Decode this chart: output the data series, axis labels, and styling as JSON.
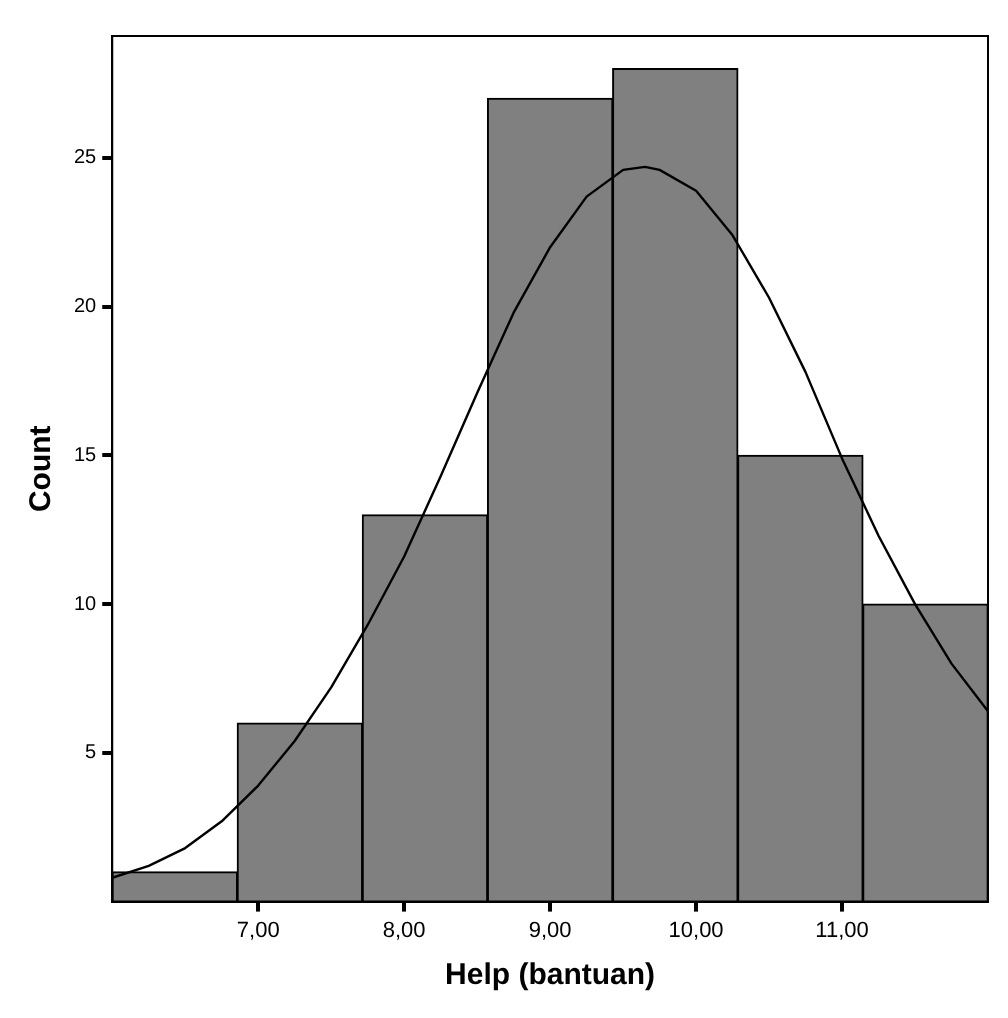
{
  "chart_data": {
    "type": "histogram",
    "xlabel": "Help (bantuan)",
    "ylabel": "Count",
    "bins": [
      6,
      6.857,
      7.714,
      8.571,
      9.429,
      10.286,
      11.143,
      12
    ],
    "values": [
      1,
      6,
      13,
      27,
      28,
      15,
      10
    ],
    "color": "#808080",
    "series": [
      {
        "type": "line",
        "color": "#000000",
        "x": [
          6,
          6.25,
          6.5,
          6.75,
          7,
          7.25,
          7.5,
          7.75,
          8,
          8.25,
          8.5,
          8.75,
          9,
          9.25,
          9.5,
          9.65,
          9.75,
          10,
          10.25,
          10.5,
          10.75,
          11,
          11.25,
          11.5,
          11.75,
          12
        ],
        "values": [
          0.8,
          1.2,
          1.8,
          2.7,
          3.9,
          5.4,
          7.2,
          9.3,
          11.6,
          14.3,
          17.1,
          19.8,
          22.0,
          23.7,
          24.6,
          24.7,
          24.6,
          23.9,
          22.4,
          20.3,
          17.8,
          14.9,
          12.3,
          10.0,
          8.0,
          6.4
        ]
      }
    ],
    "xlim": [
      6,
      12
    ],
    "ylim": [
      0,
      29.1
    ],
    "xticks": [
      {
        "value": 7,
        "label": "7,00"
      },
      {
        "value": 8,
        "label": "8,00"
      },
      {
        "value": 9,
        "label": "9,00"
      },
      {
        "value": 10,
        "label": "10,00"
      },
      {
        "value": 11,
        "label": "11,00"
      }
    ],
    "yticks": [
      5,
      10,
      15,
      20,
      25
    ],
    "grid": false,
    "legend": false,
    "marker": "none"
  }
}
